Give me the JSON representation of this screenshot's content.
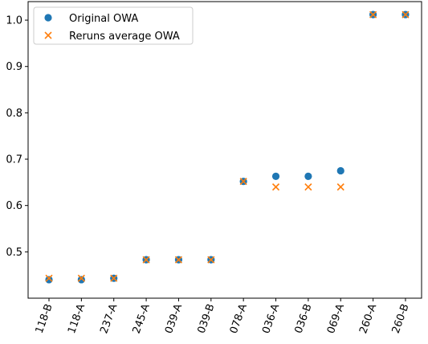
{
  "chart_data": {
    "type": "scatter",
    "categories": [
      "118-B",
      "118-A",
      "237-A",
      "245-A",
      "039-A",
      "039-B",
      "078-A",
      "036-A",
      "036-B",
      "069-A",
      "260-A",
      "260-B"
    ],
    "series": [
      {
        "name": "Original OWA",
        "marker": "circle",
        "color": "#1f77b4",
        "values": [
          0.44,
          0.44,
          0.443,
          0.483,
          0.483,
          0.483,
          0.652,
          0.663,
          0.663,
          0.675,
          1.012,
          1.012
        ]
      },
      {
        "name": "Reruns average OWA",
        "marker": "x",
        "color": "#ff7f0e",
        "values": [
          0.443,
          0.443,
          0.443,
          0.483,
          0.483,
          0.483,
          0.652,
          0.64,
          0.64,
          0.64,
          1.012,
          1.012
        ]
      }
    ],
    "ylim": [
      0.4,
      1.04
    ],
    "yticks": [
      "0.5",
      "0.6",
      "0.7",
      "0.8",
      "0.9",
      "1.0"
    ],
    "title": "",
    "xlabel": "",
    "ylabel": "",
    "grid": false,
    "legend_position": "top-left",
    "xtick_rotation": "70deg"
  }
}
